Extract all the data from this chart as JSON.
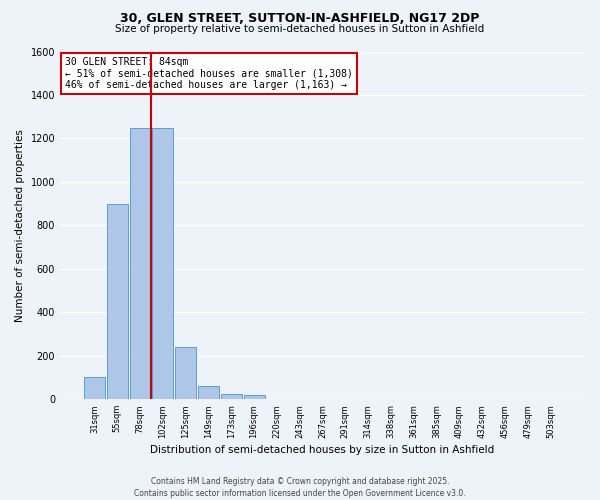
{
  "title": "30, GLEN STREET, SUTTON-IN-ASHFIELD, NG17 2DP",
  "subtitle": "Size of property relative to semi-detached houses in Sutton in Ashfield",
  "xlabel": "Distribution of semi-detached houses by size in Sutton in Ashfield",
  "ylabel": "Number of semi-detached properties",
  "footer_line1": "Contains HM Land Registry data © Crown copyright and database right 2025.",
  "footer_line2": "Contains public sector information licensed under the Open Government Licence v3.0.",
  "bar_labels": [
    "31sqm",
    "55sqm",
    "78sqm",
    "102sqm",
    "125sqm",
    "149sqm",
    "173sqm",
    "196sqm",
    "220sqm",
    "243sqm",
    "267sqm",
    "291sqm",
    "314sqm",
    "338sqm",
    "361sqm",
    "385sqm",
    "409sqm",
    "432sqm",
    "456sqm",
    "479sqm",
    "503sqm"
  ],
  "bar_values": [
    100,
    900,
    1250,
    1250,
    240,
    60,
    25,
    20,
    0,
    0,
    0,
    0,
    0,
    0,
    0,
    0,
    0,
    0,
    0,
    0,
    0
  ],
  "bar_color": "#aec6e8",
  "bar_edge_color": "#5a9fd4",
  "property_label": "30 GLEN STREET: 84sqm",
  "annotation_line1": "← 51% of semi-detached houses are smaller (1,308)",
  "annotation_line2": "46% of semi-detached houses are larger (1,163) →",
  "vline_color": "#cc0000",
  "ylim": [
    0,
    1600
  ],
  "yticks": [
    0,
    200,
    400,
    600,
    800,
    1000,
    1200,
    1400,
    1600
  ],
  "background_color": "#eef2f9",
  "grid_color": "#ffffff",
  "annotation_box_color": "#ffffff",
  "annotation_box_edge": "#cc0000"
}
